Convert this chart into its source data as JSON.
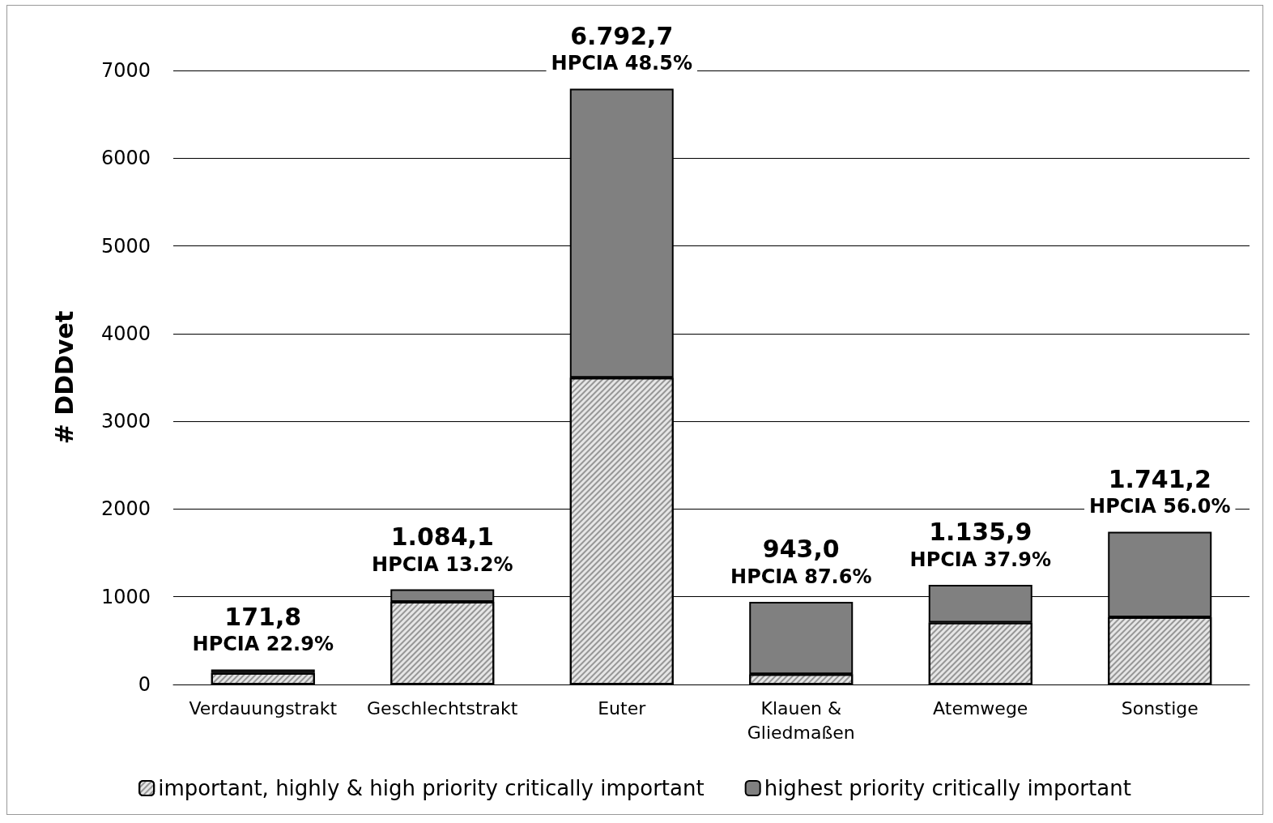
{
  "chart_data": {
    "type": "bar",
    "ylabel": "# DDDvet",
    "categories": [
      "Verdauungstrakt",
      "Geschlechtstrakt",
      "Euter",
      "Klauen &\nGliedmaßen",
      "Atemwege",
      "Sonstige"
    ],
    "series": [
      {
        "name": "important, highly & high priority critically important",
        "color": "#e6e6e6",
        "values": [
          132.5,
          941.0,
          3498.2,
          116.9,
          705.4,
          766.1
        ]
      },
      {
        "name": "highest priority critically important",
        "color": "#808080",
        "values": [
          39.3,
          143.1,
          3294.5,
          826.1,
          430.5,
          975.1
        ]
      }
    ],
    "stacked": true,
    "totals": [
      "171,8",
      "1.084,1",
      "6.792,7",
      "943,0",
      "1.135,9",
      "1.741,2"
    ],
    "annotations": [
      "HPCIA 22.9%",
      "HPCIA 13.2%",
      "HPCIA 48.5%",
      "HPCIA 87.6%",
      "HPCIA 37.9%",
      "HPCIA 56.0%"
    ],
    "ylim": [
      0,
      7000
    ],
    "yticks": [
      0,
      1000,
      2000,
      3000,
      4000,
      5000,
      6000,
      7000
    ],
    "grid": "y",
    "legend": "bottom"
  }
}
